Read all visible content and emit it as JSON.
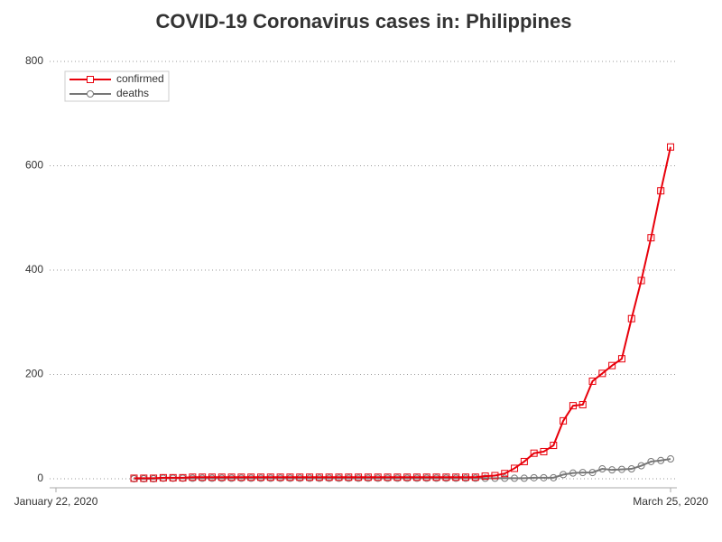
{
  "chart_data": {
    "type": "line",
    "title": "COVID-19 Coronavirus cases in: Philippines",
    "x": [
      "2020-01-30",
      "2020-01-31",
      "2020-02-01",
      "2020-02-02",
      "2020-02-03",
      "2020-02-04",
      "2020-02-05",
      "2020-02-06",
      "2020-02-07",
      "2020-02-08",
      "2020-02-09",
      "2020-02-10",
      "2020-02-11",
      "2020-02-12",
      "2020-02-13",
      "2020-02-14",
      "2020-02-15",
      "2020-02-16",
      "2020-02-17",
      "2020-02-18",
      "2020-02-19",
      "2020-02-20",
      "2020-02-21",
      "2020-02-22",
      "2020-02-23",
      "2020-02-24",
      "2020-02-25",
      "2020-02-26",
      "2020-02-27",
      "2020-02-28",
      "2020-02-29",
      "2020-03-01",
      "2020-03-02",
      "2020-03-03",
      "2020-03-04",
      "2020-03-05",
      "2020-03-06",
      "2020-03-07",
      "2020-03-08",
      "2020-03-09",
      "2020-03-10",
      "2020-03-11",
      "2020-03-12",
      "2020-03-13",
      "2020-03-14",
      "2020-03-15",
      "2020-03-16",
      "2020-03-17",
      "2020-03-18",
      "2020-03-19",
      "2020-03-20",
      "2020-03-21",
      "2020-03-22",
      "2020-03-23",
      "2020-03-24",
      "2020-03-25"
    ],
    "series": [
      {
        "name": "confirmed",
        "color": "#e8000b",
        "marker": "square",
        "values": [
          1,
          1,
          1,
          2,
          2,
          2,
          3,
          3,
          3,
          3,
          3,
          3,
          3,
          3,
          3,
          3,
          3,
          3,
          3,
          3,
          3,
          3,
          3,
          3,
          3,
          3,
          3,
          3,
          3,
          3,
          3,
          3,
          3,
          3,
          3,
          3,
          5,
          6,
          10,
          20,
          33,
          49,
          52,
          64,
          111,
          140,
          142,
          187,
          202,
          217,
          230,
          307,
          380,
          462,
          552,
          636
        ]
      },
      {
        "name": "deaths",
        "color": "#777777",
        "marker": "circle",
        "values": [
          0,
          0,
          0,
          1,
          1,
          1,
          1,
          1,
          1,
          1,
          1,
          1,
          1,
          1,
          1,
          1,
          1,
          1,
          1,
          1,
          1,
          1,
          1,
          1,
          1,
          1,
          1,
          1,
          1,
          1,
          1,
          1,
          1,
          1,
          1,
          1,
          1,
          1,
          1,
          1,
          1,
          2,
          2,
          2,
          8,
          11,
          12,
          12,
          19,
          17,
          18,
          19,
          25,
          33,
          35,
          38
        ]
      }
    ],
    "xlim": [
      "2020-01-22",
      "2020-03-25"
    ],
    "xticks": [
      {
        "value": "2020-01-22",
        "label": "January 22, 2020"
      },
      {
        "value": "2020-03-25",
        "label": "March 25, 2020"
      }
    ],
    "ylim": [
      0,
      800
    ],
    "yticks": [
      0,
      200,
      400,
      600,
      800
    ],
    "grid": true,
    "legend": "upper left"
  }
}
